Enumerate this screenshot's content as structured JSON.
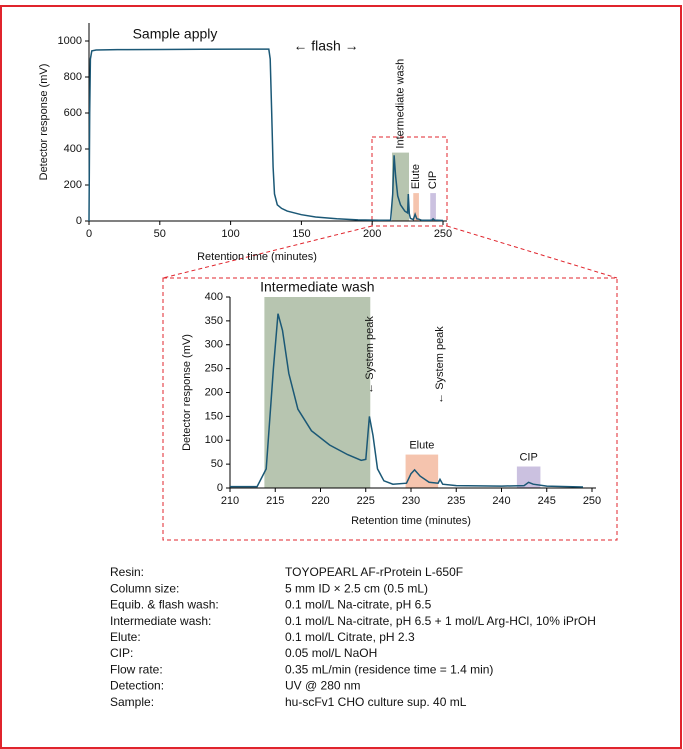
{
  "chart_data": [
    {
      "type": "line",
      "xlabel": "Retention time (minutes)",
      "ylabel": "Detector response (mV)",
      "xlim": [
        0,
        250
      ],
      "xticks": [
        0,
        50,
        100,
        150,
        200,
        250
      ],
      "ylim": [
        0,
        1100
      ],
      "yticks": [
        0,
        200,
        400,
        600,
        800,
        1000
      ],
      "annotations": [
        "Sample apply",
        "← flash →"
      ],
      "regions": [
        {
          "label": "Intermediate wash",
          "x": [
            214,
            226
          ],
          "y": [
            0,
            380
          ],
          "color": "#b7c5b0"
        },
        {
          "label": "Elute",
          "x": [
            229,
            233
          ],
          "y": [
            0,
            155
          ],
          "color": "#f5c4ae"
        },
        {
          "label": "CIP",
          "x": [
            241,
            245
          ],
          "y": [
            0,
            155
          ],
          "color": "#cbc1e0"
        }
      ],
      "x": [
        0,
        0.5,
        1,
        2,
        5,
        20,
        50,
        80,
        110,
        127,
        128,
        129,
        130,
        131,
        133,
        136,
        140,
        150,
        160,
        175,
        190,
        205,
        213,
        214.5,
        215.5,
        216.5,
        218,
        220,
        223,
        225,
        225.5,
        226.2,
        227,
        229,
        230.3,
        231.5,
        233,
        235,
        242,
        243,
        244,
        250
      ],
      "series": [
        {
          "color": "#1b5876",
          "values": [
            0,
            600,
            900,
            945,
            950,
            952,
            953,
            954,
            955,
            955,
            900,
            600,
            300,
            150,
            90,
            70,
            55,
            35,
            22,
            12,
            6,
            4,
            5,
            150,
            365,
            250,
            140,
            90,
            55,
            45,
            150,
            40,
            15,
            8,
            38,
            12,
            10,
            4,
            4,
            12,
            5,
            3
          ]
        }
      ]
    },
    {
      "type": "line",
      "xlabel": "Retention time (minutes)",
      "ylabel": "Detector response (mV)",
      "xlim": [
        210,
        250
      ],
      "xticks": [
        210,
        215,
        220,
        225,
        230,
        235,
        240,
        245,
        250
      ],
      "ylim": [
        0,
        400
      ],
      "yticks": [
        0,
        50,
        100,
        150,
        200,
        250,
        300,
        350,
        400
      ],
      "annotations": [
        "← System peak",
        "← System peak"
      ],
      "regions": [
        {
          "label": "Intermediate wash",
          "x": [
            213.8,
            225.5
          ],
          "y": [
            0,
            400
          ],
          "color": "#b7c5b0"
        },
        {
          "label": "Elute",
          "x": [
            229.4,
            233
          ],
          "y": [
            0,
            70
          ],
          "color": "#f5c4ae"
        },
        {
          "label": "CIP",
          "x": [
            241.7,
            244.3
          ],
          "y": [
            0,
            45
          ],
          "color": "#cbc1e0"
        }
      ],
      "x": [
        210,
        213,
        214,
        214.8,
        215.3,
        215.8,
        216.5,
        217.5,
        219,
        221,
        223,
        224.5,
        225,
        225.4,
        225.8,
        226.3,
        227,
        228,
        229.5,
        230,
        230.4,
        231,
        232,
        233,
        233.2,
        233.5,
        235,
        240,
        242.5,
        243,
        243.5,
        245,
        249
      ],
      "series": [
        {
          "color": "#1b5876",
          "values": [
            3,
            3,
            40,
            250,
            365,
            330,
            240,
            165,
            120,
            90,
            70,
            58,
            60,
            150,
            110,
            40,
            15,
            8,
            10,
            30,
            38,
            25,
            12,
            10,
            18,
            8,
            5,
            4,
            5,
            12,
            8,
            4,
            2
          ]
        }
      ]
    }
  ],
  "conditions": [
    {
      "label": "Resin:",
      "value": "TOYOPEARL AF-rProtein L-650F"
    },
    {
      "label": "Column size:",
      "value": "5 mm ID × 2.5 cm (0.5 mL)"
    },
    {
      "label": "Equib. & flash wash:",
      "value": "0.1 mol/L Na-citrate, pH 6.5"
    },
    {
      "label": "Intermediate wash:",
      "value": "0.1 mol/L Na-citrate, pH 6.5 + 1 mol/L Arg-HCl, 10% iPrOH"
    },
    {
      "label": "Elute:",
      "value": "0.1 mol/L Citrate, pH 2.3"
    },
    {
      "label": "CIP:",
      "value": "0.05 mol/L NaOH"
    },
    {
      "label": "Flow rate:",
      "value": "0.35 mL/min (residence time = 1.4 min)"
    },
    {
      "label": "Detection:",
      "value": "UV @ 280 nm"
    },
    {
      "label": "Sample:",
      "value": "hu-scFv1 CHO culture sup. 40 mL"
    }
  ]
}
